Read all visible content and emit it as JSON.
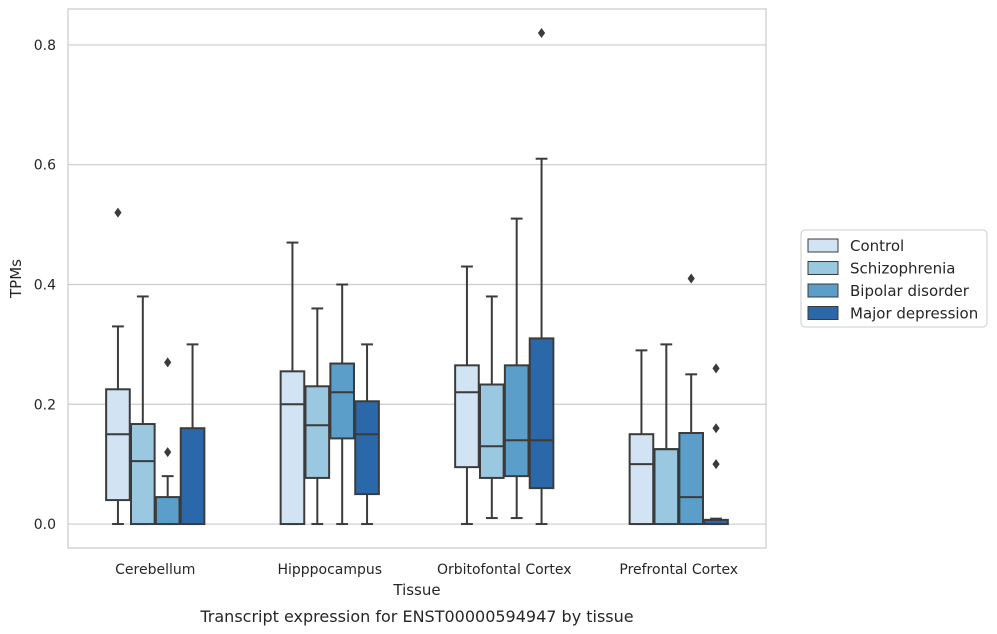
{
  "chart_data": {
    "type": "box",
    "xlabel": "Tissue",
    "ylabel": "TPMs",
    "caption": "Transcript expression for ENST00000594947 by tissue",
    "ylim": [
      -0.04,
      0.86
    ],
    "yticks": [
      0.0,
      0.2,
      0.4,
      0.6,
      0.8
    ],
    "ytick_labels": [
      "0.0",
      "0.2",
      "0.4",
      "0.6",
      "0.8"
    ],
    "grid": "horizontal",
    "legend_position": "right",
    "categories": [
      "Cerebellum",
      "Hipppocampus",
      "Orbitofontal Cortex",
      "Prefrontal Cortex"
    ],
    "series": [
      {
        "name": "Control",
        "color": "#d2e3f3",
        "boxes": [
          {
            "whislo": 0.0,
            "q1": 0.04,
            "med": 0.15,
            "q3": 0.225,
            "whishi": 0.33,
            "fliers": [
              0.52
            ]
          },
          {
            "whislo": 0.0,
            "q1": 0.0,
            "med": 0.2,
            "q3": 0.255,
            "whishi": 0.47,
            "fliers": []
          },
          {
            "whislo": 0.0,
            "q1": 0.095,
            "med": 0.22,
            "q3": 0.265,
            "whishi": 0.43,
            "fliers": []
          },
          {
            "whislo": 0.0,
            "q1": 0.0,
            "med": 0.1,
            "q3": 0.15,
            "whishi": 0.29,
            "fliers": []
          }
        ]
      },
      {
        "name": "Schizophrenia",
        "color": "#9ac8e0",
        "boxes": [
          {
            "whislo": 0.0,
            "q1": 0.0,
            "med": 0.105,
            "q3": 0.167,
            "whishi": 0.38,
            "fliers": []
          },
          {
            "whislo": 0.0,
            "q1": 0.077,
            "med": 0.165,
            "q3": 0.23,
            "whishi": 0.36,
            "fliers": []
          },
          {
            "whislo": 0.01,
            "q1": 0.077,
            "med": 0.13,
            "q3": 0.233,
            "whishi": 0.38,
            "fliers": []
          },
          {
            "whislo": 0.0,
            "q1": 0.0,
            "med": 0.125,
            "q3": 0.125,
            "whishi": 0.3,
            "fliers": []
          }
        ]
      },
      {
        "name": "Bipolar disorder",
        "color": "#5a9ec9",
        "boxes": [
          {
            "whislo": 0.0,
            "q1": 0.0,
            "med": 0.0,
            "q3": 0.045,
            "whishi": 0.08,
            "fliers": [
              0.12,
              0.27
            ]
          },
          {
            "whislo": 0.0,
            "q1": 0.143,
            "med": 0.22,
            "q3": 0.268,
            "whishi": 0.4,
            "fliers": []
          },
          {
            "whislo": 0.01,
            "q1": 0.08,
            "med": 0.14,
            "q3": 0.265,
            "whishi": 0.51,
            "fliers": []
          },
          {
            "whislo": 0.0,
            "q1": 0.0,
            "med": 0.045,
            "q3": 0.152,
            "whishi": 0.25,
            "fliers": [
              0.41
            ]
          }
        ]
      },
      {
        "name": "Major depression",
        "color": "#2a68a9",
        "boxes": [
          {
            "whislo": 0.0,
            "q1": 0.0,
            "med": 0.0,
            "q3": 0.16,
            "whishi": 0.3,
            "fliers": []
          },
          {
            "whislo": 0.0,
            "q1": 0.05,
            "med": 0.15,
            "q3": 0.205,
            "whishi": 0.3,
            "fliers": []
          },
          {
            "whislo": 0.0,
            "q1": 0.06,
            "med": 0.14,
            "q3": 0.31,
            "whishi": 0.61,
            "fliers": [
              0.82
            ]
          },
          {
            "whislo": 0.0,
            "q1": 0.0,
            "med": 0.0,
            "q3": 0.007,
            "whishi": 0.009,
            "fliers": [
              0.1,
              0.16,
              0.26
            ]
          }
        ]
      }
    ]
  }
}
